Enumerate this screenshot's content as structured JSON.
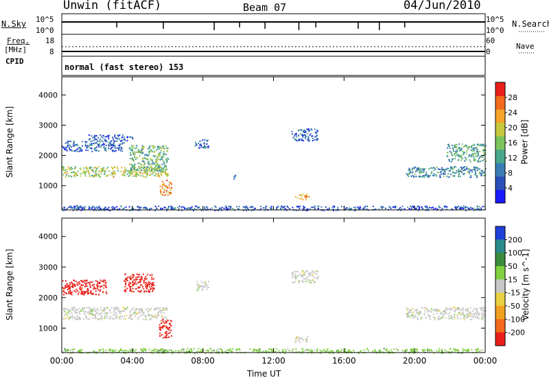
{
  "header": {
    "station": "Unwin (fitACF)",
    "beam": "Beam 07",
    "date": "04/Jun/2010"
  },
  "left_labels": {
    "nsky": "N.Sky",
    "freq": "Freq.",
    "freq_unit": "[MHz]",
    "cpid": "CPID",
    "nsky_top": "10^5",
    "nsky_bottom": "10^0",
    "freq_top": "18",
    "freq_bottom": "8"
  },
  "right_labels": {
    "nsearch": "N.Search",
    "nave": "Nave",
    "nsearch_top": "10^5",
    "nsearch_bottom": "10^0",
    "nave_top": "60",
    "nave_bottom": "0"
  },
  "mode_text": "normal (fast stereo) 153",
  "xaxis": {
    "label": "Time UT",
    "ticks": [
      "00:00",
      "04:00",
      "08:00",
      "12:00",
      "16:00",
      "20:00",
      "00:00"
    ]
  },
  "chart_data": [
    {
      "type": "heatmap",
      "name": "power",
      "ylabel": "Slant Range [km]",
      "yticks": [
        "1000",
        "2000",
        "3000",
        "4000"
      ],
      "ylim": [
        200,
        4600
      ],
      "xlim_hours": [
        0,
        24
      ],
      "colorbar_label": "Power [dB]",
      "colorbar_ticks": [
        "4",
        "8",
        "12",
        "16",
        "20",
        "24",
        "28"
      ],
      "colorbar_range": [
        0,
        32
      ],
      "colors": [
        "#1a1aff",
        "#2a4fb8",
        "#3a7db4",
        "#4aa88a",
        "#7cc35a",
        "#c8c83c",
        "#f4a428",
        "#f26a1c",
        "#e81e1a"
      ],
      "bands": [
        {
          "t0": 0.0,
          "t1": 6.0,
          "r0": 1300,
          "r1": 1650,
          "p": 18
        },
        {
          "t0": 0.0,
          "t1": 3.5,
          "r0": 2150,
          "r1": 2500,
          "p": 6
        },
        {
          "t0": 1.5,
          "t1": 4.0,
          "r0": 2500,
          "r1": 2700,
          "p": 5
        },
        {
          "t0": 3.8,
          "t1": 6.0,
          "r0": 1500,
          "r1": 2350,
          "p": 14
        },
        {
          "t0": 5.5,
          "t1": 6.2,
          "r0": 700,
          "r1": 1200,
          "p": 26
        },
        {
          "t0": 7.5,
          "t1": 8.3,
          "r0": 2250,
          "r1": 2550,
          "p": 6
        },
        {
          "t0": 9.7,
          "t1": 9.9,
          "r0": 1200,
          "r1": 1400,
          "p": 5
        },
        {
          "t0": 13.0,
          "t1": 14.5,
          "r0": 2500,
          "r1": 2900,
          "p": 6
        },
        {
          "t0": 13.2,
          "t1": 14.0,
          "r0": 550,
          "r1": 750,
          "p": 24
        },
        {
          "t0": 19.5,
          "t1": 24.0,
          "r0": 1300,
          "r1": 1650,
          "p": 9
        },
        {
          "t0": 21.8,
          "t1": 24.0,
          "r0": 1800,
          "r1": 2400,
          "p": 12
        },
        {
          "t0": 0.0,
          "t1": 24.0,
          "r0": 200,
          "r1": 350,
          "p": 5
        }
      ]
    },
    {
      "type": "heatmap",
      "name": "velocity",
      "ylabel": "Slant Range [km]",
      "yticks": [
        "1000",
        "2000",
        "3000",
        "4000"
      ],
      "ylim": [
        200,
        4600
      ],
      "xlim_hours": [
        0,
        24
      ],
      "colorbar_label": "Velocity [m s^-1]",
      "colorbar_ticks": [
        "200",
        "100",
        "50",
        "15",
        "-15",
        "-50",
        "-100",
        "-200"
      ],
      "colors": [
        "#2040d8",
        "#2a8a8a",
        "#3c8c3c",
        "#80d040",
        "#c8c8c8",
        "#e8d040",
        "#f2a020",
        "#f26a1c",
        "#e81e1a"
      ],
      "bands": [
        {
          "t0": 0.0,
          "t1": 6.0,
          "r0": 1300,
          "r1": 1700,
          "v": 0
        },
        {
          "t0": 0.0,
          "t1": 2.5,
          "r0": 2100,
          "r1": 2600,
          "v": -220
        },
        {
          "t0": 3.5,
          "t1": 5.2,
          "r0": 2200,
          "r1": 2800,
          "v": -200
        },
        {
          "t0": 5.5,
          "t1": 6.2,
          "r0": 700,
          "r1": 1300,
          "v": -150
        },
        {
          "t0": 7.5,
          "t1": 8.3,
          "r0": 2250,
          "r1": 2550,
          "v": 0
        },
        {
          "t0": 13.0,
          "t1": 14.5,
          "r0": 2500,
          "r1": 2900,
          "v": 0
        },
        {
          "t0": 13.2,
          "t1": 14.0,
          "r0": 550,
          "r1": 750,
          "v": 0
        },
        {
          "t0": 19.5,
          "t1": 24.0,
          "r0": 1300,
          "r1": 1700,
          "v": 0
        },
        {
          "t0": 0.0,
          "t1": 24.0,
          "r0": 200,
          "r1": 350,
          "v": 40
        }
      ]
    }
  ]
}
